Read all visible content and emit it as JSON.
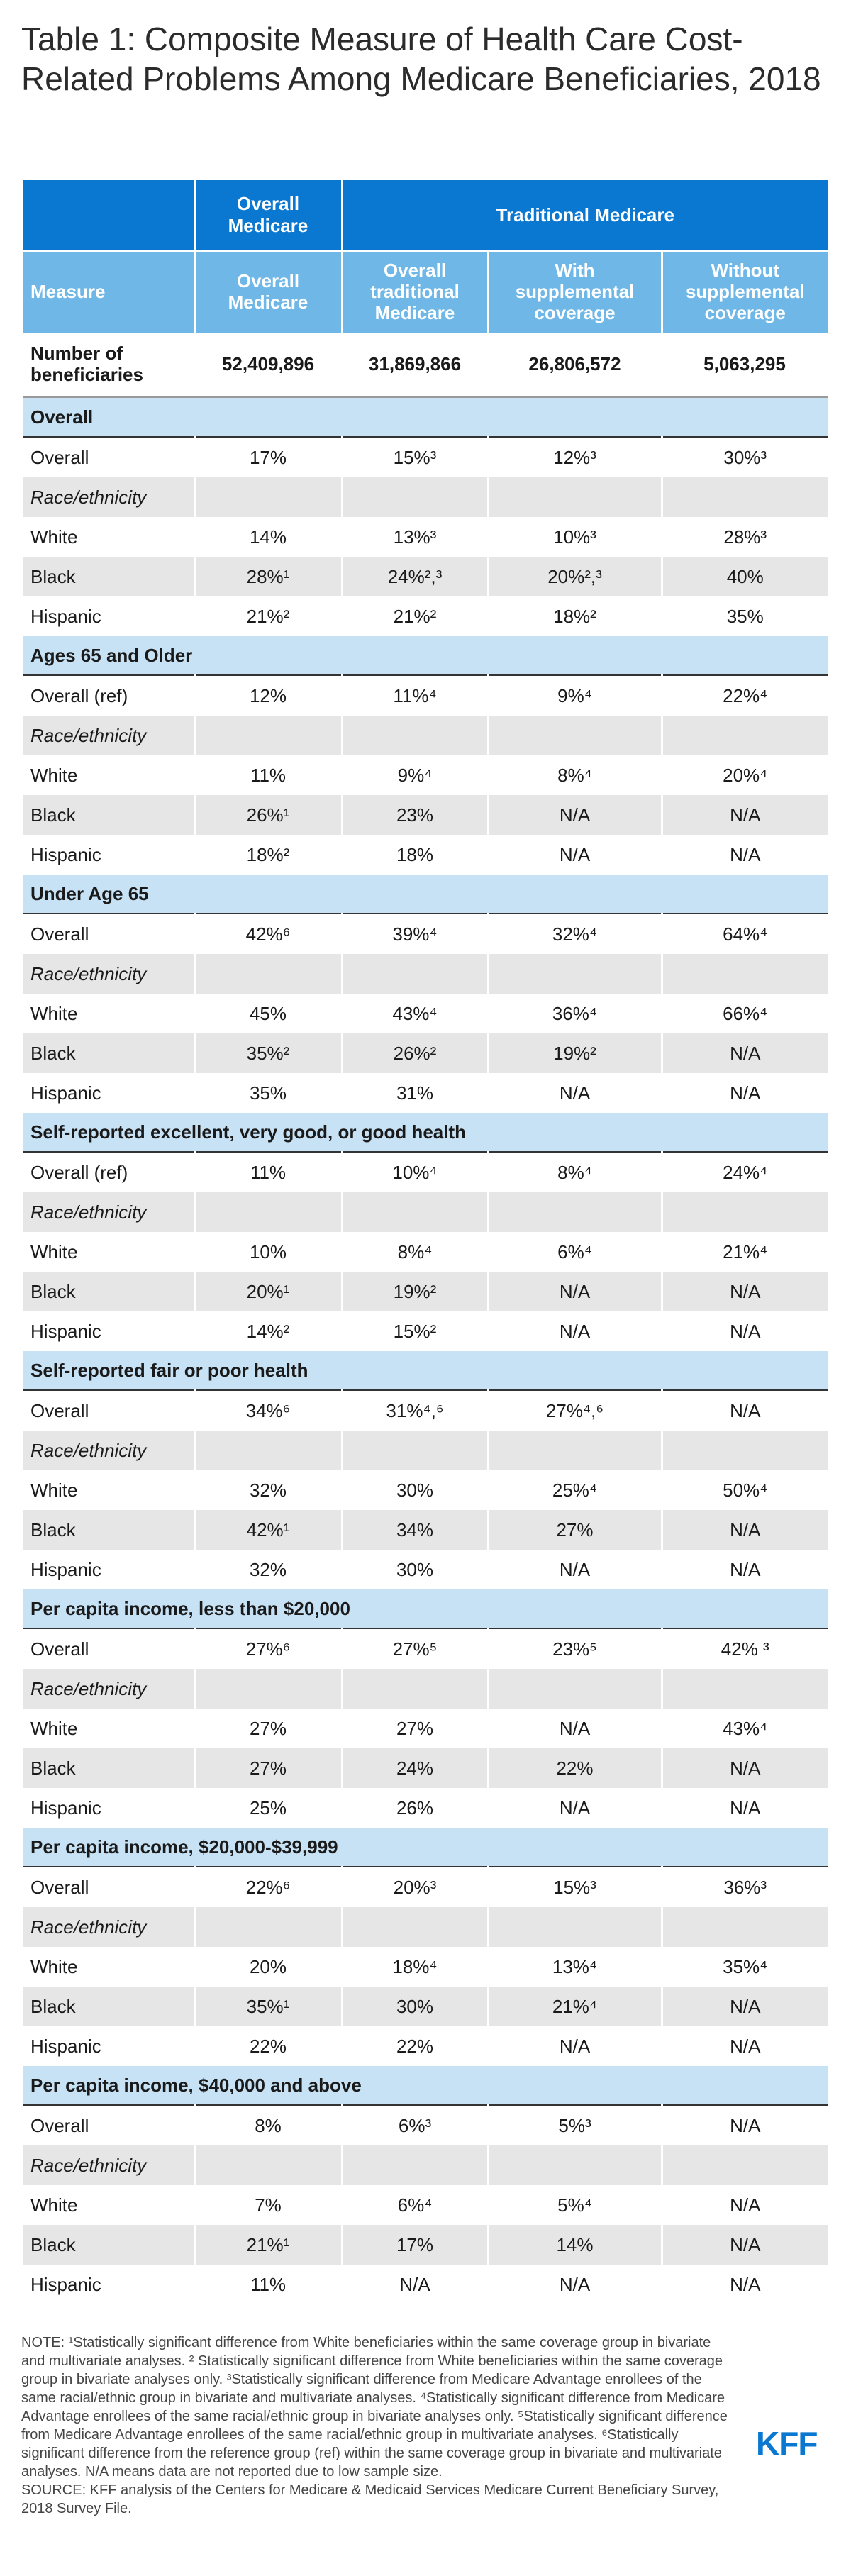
{
  "title": "Table 1: Composite Measure of Health Care Cost-Related Problems Among Medicare Beneficiaries, 2018",
  "header": {
    "group_overall": "Overall Medicare",
    "group_traditional": "Traditional Medicare",
    "columns": [
      "Measure",
      "Overall Medicare",
      "Overall traditional Medicare",
      "With supplemental coverage",
      "Without supplemental coverage"
    ]
  },
  "beneficiaries": {
    "label": "Number of beneficiaries",
    "values": [
      "52,409,896",
      "31,869,866",
      "26,806,572",
      "5,063,295"
    ]
  },
  "sections": [
    {
      "title": "Overall",
      "rows": [
        {
          "label": "Overall",
          "values": [
            "17%",
            "15%³",
            "12%³",
            "30%³"
          ]
        },
        {
          "label": "Race/ethnicity",
          "values": [
            "",
            "",
            "",
            ""
          ]
        },
        {
          "label": "White",
          "values": [
            "14%",
            "13%³",
            "10%³",
            "28%³"
          ]
        },
        {
          "label": "Black",
          "values": [
            "28%¹",
            "24%²,³",
            "20%²,³",
            "40%"
          ]
        },
        {
          "label": "Hispanic",
          "values": [
            "21%²",
            "21%²",
            "18%²",
            "35%"
          ]
        }
      ]
    },
    {
      "title": "Ages 65 and Older",
      "rows": [
        {
          "label": "Overall (ref)",
          "values": [
            "12%",
            "11%⁴",
            "9%⁴",
            "22%⁴"
          ]
        },
        {
          "label": "Race/ethnicity",
          "values": [
            "",
            "",
            "",
            ""
          ]
        },
        {
          "label": "White",
          "values": [
            "11%",
            "9%⁴",
            "8%⁴",
            "20%⁴"
          ]
        },
        {
          "label": "Black",
          "values": [
            "26%¹",
            "23%",
            "N/A",
            "N/A"
          ]
        },
        {
          "label": "Hispanic",
          "values": [
            "18%²",
            "18%",
            "N/A",
            "N/A"
          ]
        }
      ]
    },
    {
      "title": "Under Age 65",
      "rows": [
        {
          "label": "Overall",
          "values": [
            "42%⁶",
            "39%⁴",
            "32%⁴",
            "64%⁴"
          ]
        },
        {
          "label": "Race/ethnicity",
          "values": [
            "",
            "",
            "",
            ""
          ]
        },
        {
          "label": "White",
          "values": [
            "45%",
            "43%⁴",
            "36%⁴",
            "66%⁴"
          ]
        },
        {
          "label": "Black",
          "values": [
            "35%²",
            "26%²",
            "19%²",
            "N/A"
          ]
        },
        {
          "label": "Hispanic",
          "values": [
            "35%",
            "31%",
            "N/A",
            "N/A"
          ]
        }
      ]
    },
    {
      "title": "Self-reported excellent, very good, or good health",
      "rows": [
        {
          "label": "Overall (ref)",
          "values": [
            "11%",
            "10%⁴",
            "8%⁴",
            "24%⁴"
          ]
        },
        {
          "label": "Race/ethnicity",
          "values": [
            "",
            "",
            "",
            ""
          ]
        },
        {
          "label": "White",
          "values": [
            "10%",
            "8%⁴",
            "6%⁴",
            "21%⁴"
          ]
        },
        {
          "label": "Black",
          "values": [
            "20%¹",
            "19%²",
            "N/A",
            "N/A"
          ]
        },
        {
          "label": "Hispanic",
          "values": [
            "14%²",
            "15%²",
            "N/A",
            "N/A"
          ]
        }
      ]
    },
    {
      "title": "Self-reported fair or poor health",
      "rows": [
        {
          "label": "Overall",
          "values": [
            "34%⁶",
            "31%⁴,⁶",
            "27%⁴,⁶",
            "N/A"
          ]
        },
        {
          "label": "Race/ethnicity",
          "values": [
            "",
            "",
            "",
            ""
          ]
        },
        {
          "label": "White",
          "values": [
            "32%",
            "30%",
            "25%⁴",
            "50%⁴"
          ]
        },
        {
          "label": "Black",
          "values": [
            "42%¹",
            "34%",
            "27%",
            "N/A"
          ]
        },
        {
          "label": "Hispanic",
          "values": [
            "32%",
            "30%",
            "N/A",
            "N/A"
          ]
        }
      ]
    },
    {
      "title": "Per capita income, less than $20,000",
      "rows": [
        {
          "label": "Overall",
          "values": [
            "27%⁶",
            "27%⁵",
            "23%⁵",
            "42% ³"
          ]
        },
        {
          "label": "Race/ethnicity",
          "values": [
            "",
            "",
            "",
            ""
          ]
        },
        {
          "label": "White",
          "values": [
            "27%",
            "27%",
            "N/A",
            "43%⁴"
          ]
        },
        {
          "label": "Black",
          "values": [
            "27%",
            "24%",
            "22%",
            "N/A"
          ]
        },
        {
          "label": "Hispanic",
          "values": [
            "25%",
            "26%",
            "N/A",
            "N/A"
          ]
        }
      ]
    },
    {
      "title": "Per capita income, $20,000-$39,999",
      "rows": [
        {
          "label": "Overall",
          "values": [
            "22%⁶",
            "20%³",
            "15%³",
            "36%³"
          ]
        },
        {
          "label": "Race/ethnicity",
          "values": [
            "",
            "",
            "",
            ""
          ]
        },
        {
          "label": "White",
          "values": [
            "20%",
            "18%⁴",
            "13%⁴",
            "35%⁴"
          ]
        },
        {
          "label": "Black",
          "values": [
            "35%¹",
            "30%",
            "21%⁴",
            "N/A"
          ]
        },
        {
          "label": "Hispanic",
          "values": [
            "22%",
            "22%",
            "N/A",
            "N/A"
          ]
        }
      ]
    },
    {
      "title": "Per capita income, $40,000 and above",
      "rows": [
        {
          "label": "Overall",
          "values": [
            "8%",
            "6%³",
            "5%³",
            "N/A"
          ]
        },
        {
          "label": "Race/ethnicity",
          "values": [
            "",
            "",
            "",
            ""
          ]
        },
        {
          "label": "White",
          "values": [
            "7%",
            "6%⁴",
            "5%⁴",
            "N/A"
          ]
        },
        {
          "label": "Black",
          "values": [
            "21%¹",
            "17%",
            "14%",
            "N/A"
          ]
        },
        {
          "label": "Hispanic",
          "values": [
            "11%",
            "N/A",
            "N/A",
            "N/A"
          ]
        }
      ]
    }
  ],
  "notes": {
    "note": "NOTE: ¹Statistically significant difference from White beneficiaries within the same coverage group in bivariate and multivariate analyses. ² Statistically significant difference from White beneficiaries within the same coverage group in bivariate analyses only. ³Statistically significant difference from Medicare Advantage enrollees of the same racial/ethnic group in bivariate and multivariate analyses. ⁴Statistically significant difference from Medicare Advantage enrollees of the same racial/ethnic group in bivariate analyses only. ⁵Statistically significant difference from Medicare Advantage enrollees of the same racial/ethnic group in multivariate analyses. ⁶Statistically significant difference from the reference group (ref) within the same coverage group in bivariate and multivariate analyses. N/A means data are not reported due to low sample size.",
    "source": "SOURCE: KFF analysis of the Centers for Medicare & Medicaid Services Medicare Current Beneficiary Survey, 2018 Survey File."
  },
  "logo": "KFF",
  "colors": {
    "header_dark": "#0a78d1",
    "header_light": "#6fb7e7",
    "section_band": "#c7e2f5",
    "row_shade": "#e6e6e6"
  }
}
